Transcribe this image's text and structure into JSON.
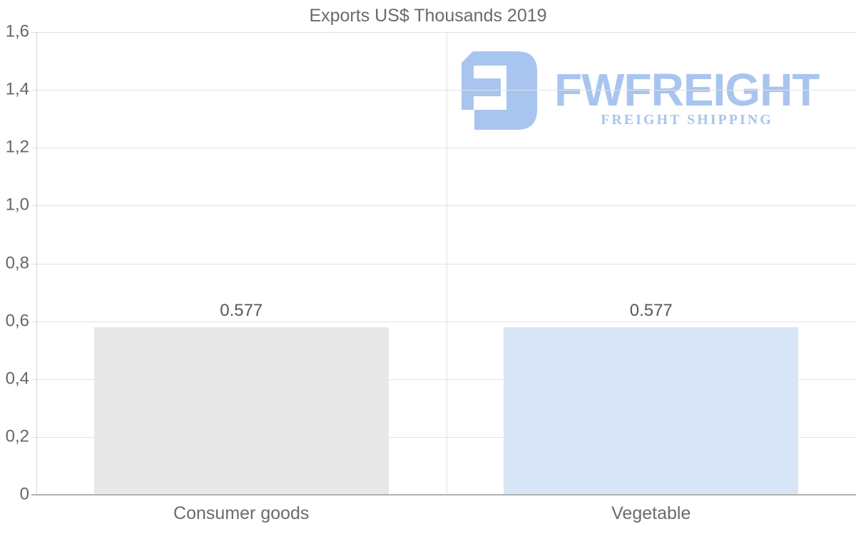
{
  "page": {
    "title": "Exports US$ Thousands 2019"
  },
  "chart_data": {
    "type": "bar",
    "title": "Exports US$ Thousands 2019",
    "categories": [
      "Consumer goods",
      "Vegetable"
    ],
    "values": [
      0.577,
      0.577
    ],
    "value_labels": [
      "0.577",
      "0.577"
    ],
    "bar_colors": [
      "#e8e8e8",
      "#d8e5f7"
    ],
    "xlabel": "",
    "ylabel": "",
    "ylim": [
      0,
      1.6
    ],
    "ytick_values": [
      0,
      0.2,
      0.4,
      0.6,
      0.8,
      1.0,
      1.2,
      1.4,
      1.6
    ],
    "ytick_labels": [
      "0",
      "0,2",
      "0,4",
      "0,6",
      "0,8",
      "1,0",
      "1,2",
      "1,4",
      "1,6"
    ],
    "grid": true,
    "legend": "none",
    "decimal_separator_axis": "comma"
  },
  "watermark": {
    "brand": "FWFREIGHT",
    "tagline": "FREIGHT SHIPPING",
    "color": "#a8c5ef"
  },
  "colors": {
    "background": "#ffffff",
    "title_text": "#6a6a6a",
    "axis_text": "#666666",
    "value_text": "#585858",
    "gridline": "#e2e2e2",
    "x_axis_line": "#b2b2b2",
    "y_axis_line": "#d8d8d8",
    "bar_consumer_goods": "#e8e8e8",
    "bar_vegetable": "#d8e5f7",
    "logo_blue": "#a8c5ef"
  }
}
